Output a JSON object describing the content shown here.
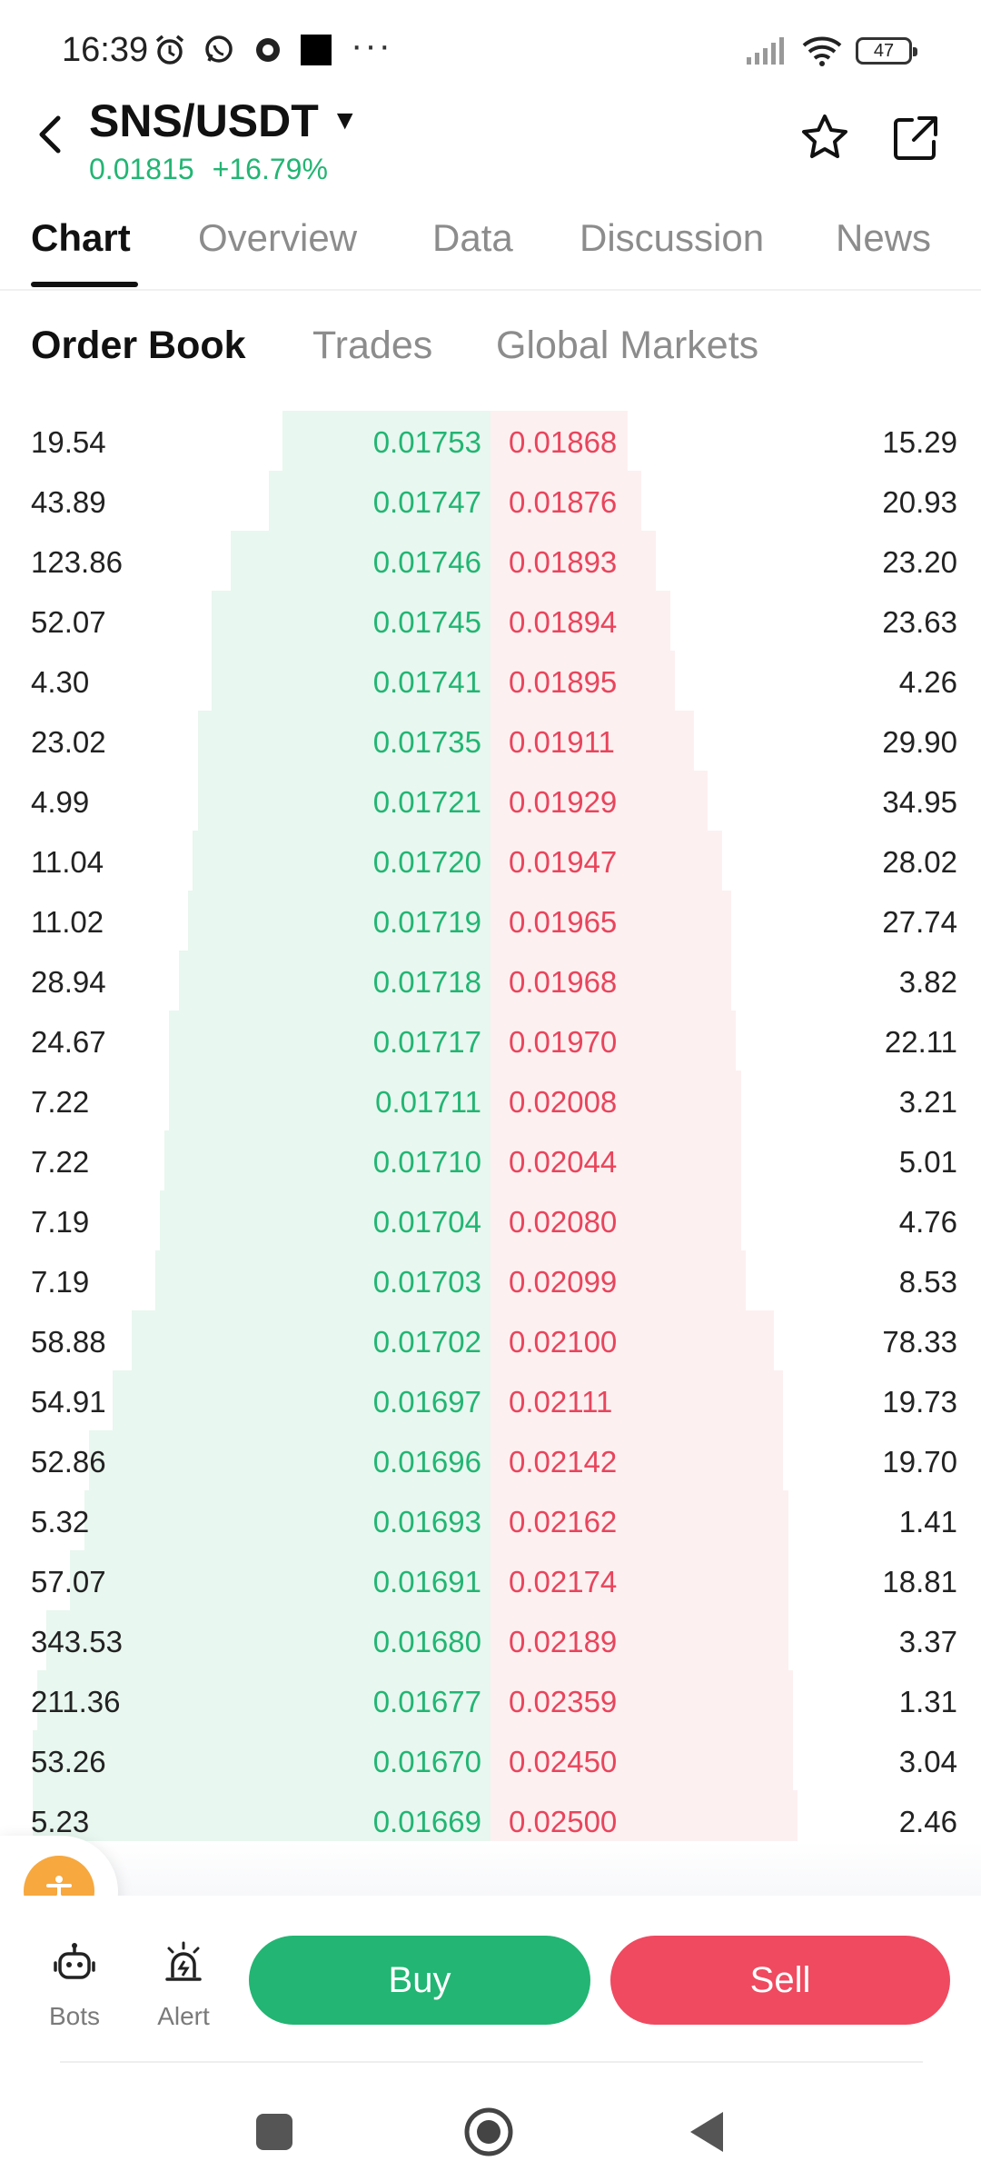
{
  "status_bar": {
    "time": "16:39",
    "battery": "47"
  },
  "header": {
    "pair": "SNS/USDT",
    "price": "0.01815",
    "change": "+16.79%"
  },
  "tabs": [
    "Chart",
    "Overview",
    "Data",
    "Discussion",
    "News"
  ],
  "subtabs": [
    "Order Book",
    "Trades",
    "Global Markets"
  ],
  "order_book": {
    "rows": [
      {
        "bid_qty": "19.54",
        "bid_price": "0.01753",
        "ask_price": "0.01868",
        "ask_qty": "15.29",
        "bid_depth": 0.44,
        "ask_depth": 0.29
      },
      {
        "bid_qty": "43.89",
        "bid_price": "0.01747",
        "ask_price": "0.01876",
        "ask_qty": "20.93",
        "bid_depth": 0.47,
        "ask_depth": 0.32
      },
      {
        "bid_qty": "123.86",
        "bid_price": "0.01746",
        "ask_price": "0.01893",
        "ask_qty": "23.20",
        "bid_depth": 0.55,
        "ask_depth": 0.35
      },
      {
        "bid_qty": "52.07",
        "bid_price": "0.01745",
        "ask_price": "0.01894",
        "ask_qty": "23.63",
        "bid_depth": 0.59,
        "ask_depth": 0.38
      },
      {
        "bid_qty": "4.30",
        "bid_price": "0.01741",
        "ask_price": "0.01895",
        "ask_qty": "4.26",
        "bid_depth": 0.59,
        "ask_depth": 0.39
      },
      {
        "bid_qty": "23.02",
        "bid_price": "0.01735",
        "ask_price": "0.01911",
        "ask_qty": "29.90",
        "bid_depth": 0.62,
        "ask_depth": 0.43
      },
      {
        "bid_qty": "4.99",
        "bid_price": "0.01721",
        "ask_price": "0.01929",
        "ask_qty": "34.95",
        "bid_depth": 0.62,
        "ask_depth": 0.46
      },
      {
        "bid_qty": "11.04",
        "bid_price": "0.01720",
        "ask_price": "0.01947",
        "ask_qty": "28.02",
        "bid_depth": 0.63,
        "ask_depth": 0.49
      },
      {
        "bid_qty": "11.02",
        "bid_price": "0.01719",
        "ask_price": "0.01965",
        "ask_qty": "27.74",
        "bid_depth": 0.64,
        "ask_depth": 0.51
      },
      {
        "bid_qty": "28.94",
        "bid_price": "0.01718",
        "ask_price": "0.01968",
        "ask_qty": "3.82",
        "bid_depth": 0.66,
        "ask_depth": 0.51
      },
      {
        "bid_qty": "24.67",
        "bid_price": "0.01717",
        "ask_price": "0.01970",
        "ask_qty": "22.11",
        "bid_depth": 0.68,
        "ask_depth": 0.52
      },
      {
        "bid_qty": "7.22",
        "bid_price": "0.01711",
        "ask_price": "0.02008",
        "ask_qty": "3.21",
        "bid_depth": 0.68,
        "ask_depth": 0.53
      },
      {
        "bid_qty": "7.22",
        "bid_price": "0.01710",
        "ask_price": "0.02044",
        "ask_qty": "5.01",
        "bid_depth": 0.69,
        "ask_depth": 0.53
      },
      {
        "bid_qty": "7.19",
        "bid_price": "0.01704",
        "ask_price": "0.02080",
        "ask_qty": "4.76",
        "bid_depth": 0.7,
        "ask_depth": 0.53
      },
      {
        "bid_qty": "7.19",
        "bid_price": "0.01703",
        "ask_price": "0.02099",
        "ask_qty": "8.53",
        "bid_depth": 0.71,
        "ask_depth": 0.54
      },
      {
        "bid_qty": "58.88",
        "bid_price": "0.01702",
        "ask_price": "0.02100",
        "ask_qty": "78.33",
        "bid_depth": 0.76,
        "ask_depth": 0.6
      },
      {
        "bid_qty": "54.91",
        "bid_price": "0.01697",
        "ask_price": "0.02111",
        "ask_qty": "19.73",
        "bid_depth": 0.8,
        "ask_depth": 0.62
      },
      {
        "bid_qty": "52.86",
        "bid_price": "0.01696",
        "ask_price": "0.02142",
        "ask_qty": "19.70",
        "bid_depth": 0.85,
        "ask_depth": 0.62
      },
      {
        "bid_qty": "5.32",
        "bid_price": "0.01693",
        "ask_price": "0.02162",
        "ask_qty": "1.41",
        "bid_depth": 0.86,
        "ask_depth": 0.63
      },
      {
        "bid_qty": "57.07",
        "bid_price": "0.01691",
        "ask_price": "0.02174",
        "ask_qty": "18.81",
        "bid_depth": 0.89,
        "ask_depth": 0.63
      },
      {
        "bid_qty": "343.53",
        "bid_price": "0.01680",
        "ask_price": "0.02189",
        "ask_qty": "3.37",
        "bid_depth": 0.94,
        "ask_depth": 0.63
      },
      {
        "bid_qty": "211.36",
        "bid_price": "0.01677",
        "ask_price": "0.02359",
        "ask_qty": "1.31",
        "bid_depth": 0.96,
        "ask_depth": 0.64
      },
      {
        "bid_qty": "53.26",
        "bid_price": "0.01670",
        "ask_price": "0.02450",
        "ask_qty": "3.04",
        "bid_depth": 0.97,
        "ask_depth": 0.64
      },
      {
        "bid_qty": "5.23",
        "bid_price": "0.01669",
        "ask_price": "0.02500",
        "ask_qty": "2.46",
        "bid_depth": 0.97,
        "ask_depth": 0.65
      }
    ]
  },
  "bottom_bar": {
    "bots_label": "Bots",
    "alert_label": "Alert",
    "buy_label": "Buy",
    "sell_label": "Sell"
  },
  "colors": {
    "up": "#22b573",
    "down": "#ef4a60",
    "bid_bg": "#e8f7ef",
    "ask_bg": "#fdf0f1",
    "fab": "#f7a83e"
  }
}
